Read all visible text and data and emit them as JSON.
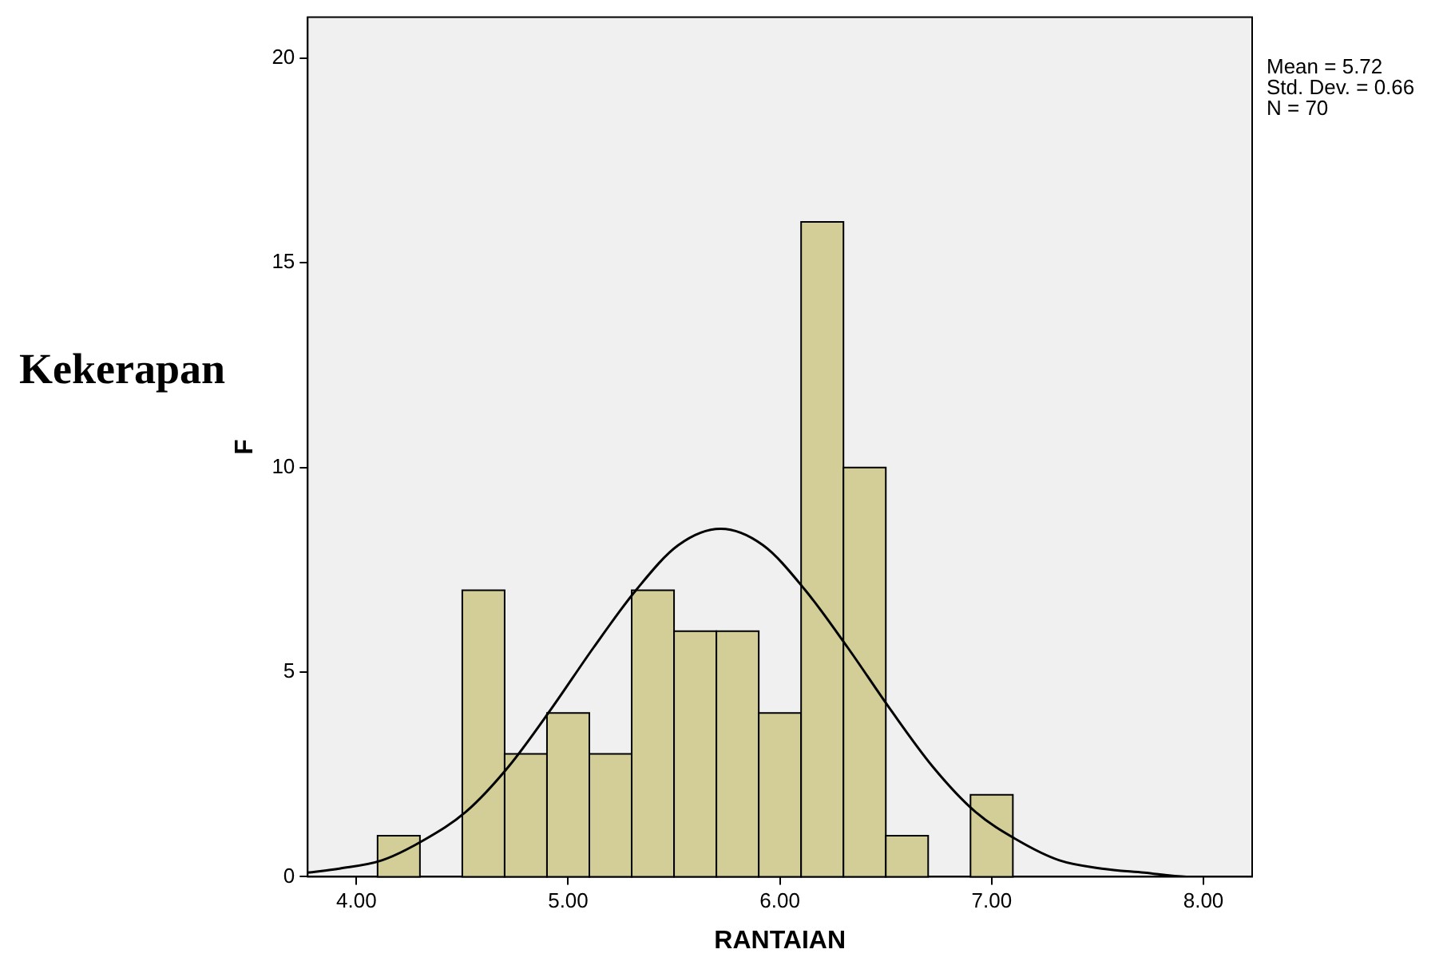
{
  "chart_data": {
    "type": "histogram",
    "xlabel": "RANTAIAN",
    "ylabel": "F",
    "bins": [
      4.1,
      4.3,
      4.5,
      4.7,
      4.9,
      5.1,
      5.3,
      5.5,
      5.7,
      5.9,
      6.1,
      6.3,
      6.5,
      6.7,
      6.9,
      7.1
    ],
    "values": [
      1,
      0,
      7,
      3,
      4,
      3,
      7,
      6,
      6,
      4,
      16,
      10,
      1,
      0,
      2
    ],
    "color": "#d3ce97",
    "series": [
      {
        "type": "line",
        "color": "#000000",
        "x": [
          3.77,
          3.92,
          4.12,
          4.32,
          4.52,
          4.72,
          4.92,
          5.12,
          5.32,
          5.52,
          5.72,
          5.92,
          6.12,
          6.32,
          6.52,
          6.72,
          6.92,
          7.12,
          7.32,
          7.52,
          7.72,
          7.92,
          8.12,
          8.22
        ],
        "values": [
          0.1,
          0.2,
          0.4,
          0.9,
          1.6,
          2.7,
          4.1,
          5.6,
          7.0,
          8.1,
          8.5,
          8.1,
          7.0,
          5.6,
          4.1,
          2.7,
          1.6,
          0.9,
          0.4,
          0.2,
          0.1,
          0.0,
          0.0,
          0.0
        ]
      }
    ],
    "xlim": [
      3.77,
      8.23
    ],
    "xticks": [
      {
        "value": 4,
        "label": "4.00"
      },
      {
        "value": 5,
        "label": "5.00"
      },
      {
        "value": 6,
        "label": "6.00"
      },
      {
        "value": 7,
        "label": "7.00"
      },
      {
        "value": 8,
        "label": "8.00"
      }
    ],
    "ylim": [
      0,
      21
    ],
    "yticks": [
      0,
      5,
      10,
      15,
      20
    ],
    "grid": false,
    "legend": false,
    "marker": "none",
    "annotations": [
      "Kekerapan",
      "Mean = 5.72",
      "Std. Dev. = 0.66",
      "N = 70"
    ]
  }
}
